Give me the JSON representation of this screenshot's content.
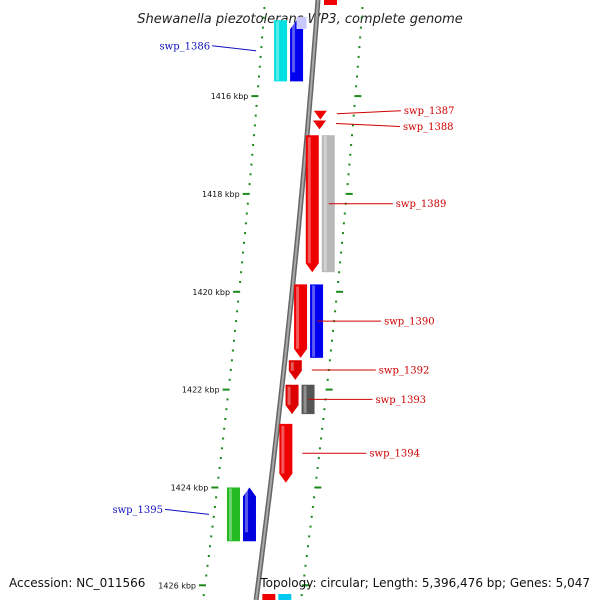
{
  "title": "Shewanella piezotolerans WP3, complete genome",
  "footer": {
    "accession": "Accession: NC_011566",
    "summary": "Topology: circular; Length: 5,396,476 bp; Genes: 5,047"
  },
  "colors": {
    "backbone": "#8a8a8a",
    "tick": "#1a8a1a",
    "red_label": "#d00000",
    "blue_label": "#1010c0"
  },
  "ruler": {
    "start_kbp": 1414.2,
    "end_kbp": 1426.3,
    "labels": [
      "1416 kbp",
      "1418 kbp",
      "1420 kbp",
      "1422 kbp",
      "1424 kbp",
      "1426 kbp"
    ]
  },
  "genes": [
    {
      "name": "swp_1386",
      "strand": "-",
      "start_kbp": 1414.45,
      "end_kbp": 1415.7,
      "color": "#0000ee",
      "track_color": "#00e0e0",
      "label_color": "blue"
    },
    {
      "name": "swp_1387",
      "strand": "+",
      "start_kbp": 1416.3,
      "end_kbp": 1416.42,
      "color": "#ee0000",
      "label_color": "red"
    },
    {
      "name": "swp_1388",
      "strand": "+",
      "start_kbp": 1416.5,
      "end_kbp": 1416.62,
      "color": "#ee0000",
      "label_color": "red"
    },
    {
      "name": "swp_1389",
      "strand": "+",
      "start_kbp": 1416.8,
      "end_kbp": 1419.6,
      "color": "#ee0000",
      "track_color": "#b8b8b8",
      "label_color": "red"
    },
    {
      "name": "swp_1390",
      "strand": "+",
      "start_kbp": 1419.85,
      "end_kbp": 1421.35,
      "color": "#ee0000",
      "track_color": "#0000ee",
      "label_color": "red"
    },
    {
      "name": "swp_1392",
      "strand": "+",
      "start_kbp": 1421.4,
      "end_kbp": 1421.8,
      "color": "#dd0000",
      "label_color": "red"
    },
    {
      "name": "swp_1393",
      "strand": "+",
      "start_kbp": 1421.9,
      "end_kbp": 1422.5,
      "color": "#dd0000",
      "track_color": "#555555",
      "label_color": "red"
    },
    {
      "name": "swp_1394",
      "strand": "+",
      "start_kbp": 1422.7,
      "end_kbp": 1423.9,
      "color": "#ee0000",
      "label_color": "red"
    },
    {
      "name": "swp_1395",
      "strand": "-",
      "start_kbp": 1424.0,
      "end_kbp": 1425.1,
      "color": "#0000dd",
      "track_color": "#22bb22",
      "label_color": "blue"
    }
  ]
}
